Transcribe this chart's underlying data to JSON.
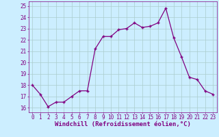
{
  "x": [
    0,
    1,
    2,
    3,
    4,
    5,
    6,
    7,
    8,
    9,
    10,
    11,
    12,
    13,
    14,
    15,
    16,
    17,
    18,
    19,
    20,
    21,
    22,
    23
  ],
  "y": [
    18.0,
    17.2,
    16.1,
    16.5,
    16.5,
    17.0,
    17.5,
    17.5,
    21.2,
    22.3,
    22.3,
    22.9,
    23.0,
    23.5,
    23.1,
    23.2,
    23.5,
    24.8,
    22.2,
    20.5,
    18.7,
    18.5,
    17.5,
    17.2
  ],
  "line_color": "#800080",
  "marker": "+",
  "marker_size": 3.5,
  "marker_lw": 1.0,
  "line_width": 0.9,
  "bg_color": "#cceeff",
  "grid_color": "#aacccc",
  "xlabel": "Windchill (Refroidissement éolien,°C)",
  "xlabel_color": "#800080",
  "xlabel_fontsize": 6.5,
  "ylim": [
    15.6,
    25.4
  ],
  "yticks": [
    16,
    17,
    18,
    19,
    20,
    21,
    22,
    23,
    24,
    25
  ],
  "xticks": [
    0,
    1,
    2,
    3,
    4,
    5,
    6,
    7,
    8,
    9,
    10,
    11,
    12,
    13,
    14,
    15,
    16,
    17,
    18,
    19,
    20,
    21,
    22,
    23
  ],
  "tick_color": "#800080",
  "tick_fontsize": 5.5,
  "spine_color": "#800080"
}
